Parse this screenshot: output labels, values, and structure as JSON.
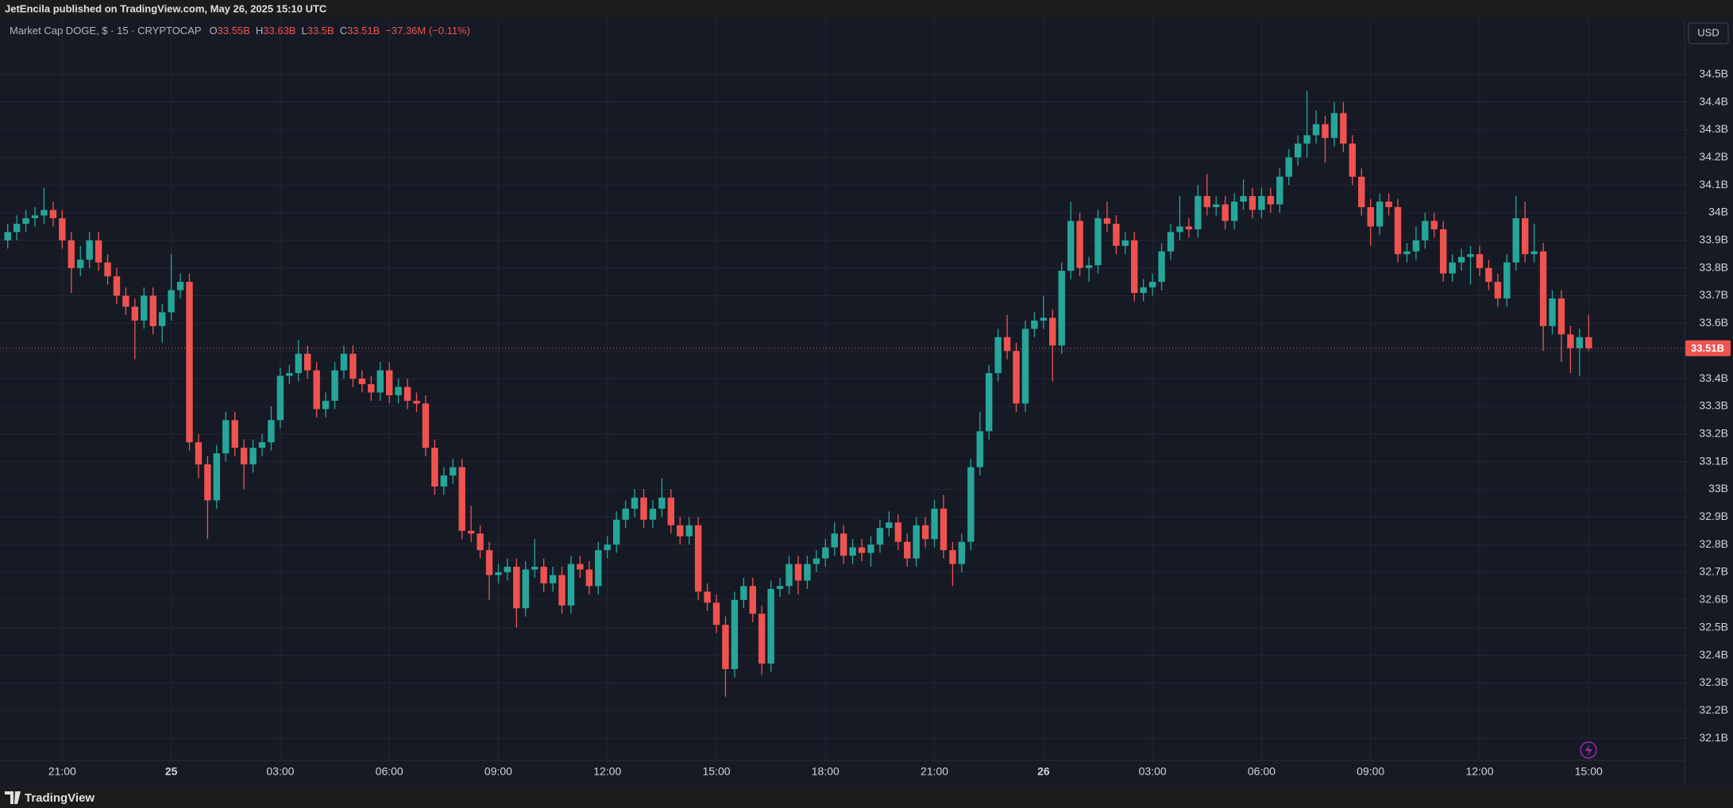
{
  "header": {
    "published": "JetEncila published on TradingView.com, May 26, 2025 15:10 UTC"
  },
  "footer": {
    "brand": "TradingView"
  },
  "currency_button": "USD",
  "chart_data": {
    "type": "candlestick",
    "title": "Market Cap DOGE, $ · 15 · CRYPTOCAP",
    "legend": [
      {
        "key": "O",
        "value": "33.55B"
      },
      {
        "key": "H",
        "value": "33.63B"
      },
      {
        "key": "L",
        "value": "33.5B"
      },
      {
        "key": "C",
        "value": "33.51B"
      }
    ],
    "change": "−37.36M (−0.11%)",
    "last_price_label": "33.51B",
    "up_color": "#26a69a",
    "down_color": "#ef5350",
    "grid": true,
    "ylim": [
      32.02,
      34.7
    ],
    "yticks": [
      {
        "value": 32.1,
        "label": "32.1B"
      },
      {
        "value": 32.2,
        "label": "32.2B"
      },
      {
        "value": 32.3,
        "label": "32.3B"
      },
      {
        "value": 32.4,
        "label": "32.4B"
      },
      {
        "value": 32.5,
        "label": "32.5B"
      },
      {
        "value": 32.6,
        "label": "32.6B"
      },
      {
        "value": 32.7,
        "label": "32.7B"
      },
      {
        "value": 32.8,
        "label": "32.8B"
      },
      {
        "value": 32.9,
        "label": "32.9B"
      },
      {
        "value": 33,
        "label": "33B"
      },
      {
        "value": 33.1,
        "label": "33.1B"
      },
      {
        "value": 33.2,
        "label": "33.2B"
      },
      {
        "value": 33.3,
        "label": "33.3B"
      },
      {
        "value": 33.4,
        "label": "33.4B"
      },
      {
        "value": 33.5,
        "label": "33.5B"
      },
      {
        "value": 33.6,
        "label": "33.6B"
      },
      {
        "value": 33.7,
        "label": "33.7B"
      },
      {
        "value": 33.8,
        "label": "33.8B"
      },
      {
        "value": 33.9,
        "label": "33.9B"
      },
      {
        "value": 34,
        "label": "34B"
      },
      {
        "value": 34.1,
        "label": "34.1B"
      },
      {
        "value": 34.2,
        "label": "34.2B"
      },
      {
        "value": 34.3,
        "label": "34.3B"
      },
      {
        "value": 34.4,
        "label": "34.4B"
      },
      {
        "value": 34.5,
        "label": "34.5B"
      }
    ],
    "categories": [
      null,
      null,
      null,
      null,
      null,
      null,
      "21:00",
      null,
      null,
      null,
      null,
      null,
      null,
      null,
      null,
      null,
      null,
      null,
      "25",
      null,
      null,
      null,
      null,
      null,
      null,
      null,
      null,
      null,
      null,
      null,
      "03:00",
      null,
      null,
      null,
      null,
      null,
      null,
      null,
      null,
      null,
      null,
      null,
      "06:00",
      null,
      null,
      null,
      null,
      null,
      null,
      null,
      null,
      null,
      null,
      null,
      "09:00",
      null,
      null,
      null,
      null,
      null,
      null,
      null,
      null,
      null,
      null,
      null,
      "12:00",
      null,
      null,
      null,
      null,
      null,
      null,
      null,
      null,
      null,
      null,
      null,
      "15:00",
      null,
      null,
      null,
      null,
      null,
      null,
      null,
      null,
      null,
      null,
      null,
      "18:00",
      null,
      null,
      null,
      null,
      null,
      null,
      null,
      null,
      null,
      null,
      null,
      "21:00",
      null,
      null,
      null,
      null,
      null,
      null,
      null,
      null,
      null,
      null,
      null,
      "26",
      null,
      null,
      null,
      null,
      null,
      null,
      null,
      null,
      null,
      null,
      null,
      "03:00",
      null,
      null,
      null,
      null,
      null,
      null,
      null,
      null,
      null,
      null,
      null,
      "06:00",
      null,
      null,
      null,
      null,
      null,
      null,
      null,
      null,
      null,
      null,
      null,
      "09:00",
      null,
      null,
      null,
      null,
      null,
      null,
      null,
      null,
      null,
      null,
      null,
      "12:00",
      null,
      null,
      null,
      null,
      null,
      null,
      null,
      null,
      null,
      null,
      null,
      "15:00"
    ],
    "ohlc": [
      [
        33.9,
        33.96,
        33.87,
        33.93
      ],
      [
        33.93,
        33.99,
        33.9,
        33.96
      ],
      [
        33.96,
        34.01,
        33.93,
        33.98
      ],
      [
        33.98,
        34.02,
        33.95,
        33.99
      ],
      [
        33.99,
        34.09,
        33.96,
        34.01
      ],
      [
        34.01,
        34.04,
        33.95,
        33.98
      ],
      [
        33.98,
        34.01,
        33.87,
        33.9
      ],
      [
        33.9,
        33.93,
        33.71,
        33.8
      ],
      [
        33.8,
        33.88,
        33.77,
        33.83
      ],
      [
        33.83,
        33.93,
        33.8,
        33.9
      ],
      [
        33.9,
        33.93,
        33.79,
        33.82
      ],
      [
        33.82,
        33.85,
        33.74,
        33.77
      ],
      [
        33.77,
        33.8,
        33.67,
        33.7
      ],
      [
        33.7,
        33.73,
        33.63,
        33.66
      ],
      [
        33.66,
        33.69,
        33.47,
        33.61
      ],
      [
        33.61,
        33.73,
        33.58,
        33.7
      ],
      [
        33.7,
        33.73,
        33.56,
        33.59
      ],
      [
        33.59,
        33.67,
        33.53,
        33.64
      ],
      [
        33.64,
        33.85,
        33.61,
        33.72
      ],
      [
        33.72,
        33.78,
        33.69,
        33.75
      ],
      [
        33.75,
        33.78,
        33.14,
        33.17
      ],
      [
        33.17,
        33.2,
        33.04,
        33.09
      ],
      [
        33.09,
        33.12,
        32.82,
        32.96
      ],
      [
        32.96,
        33.16,
        32.93,
        33.13
      ],
      [
        33.13,
        33.28,
        33.1,
        33.25
      ],
      [
        33.25,
        33.28,
        33.12,
        33.15
      ],
      [
        33.15,
        33.18,
        33.0,
        33.09
      ],
      [
        33.09,
        33.18,
        33.06,
        33.15
      ],
      [
        33.15,
        33.2,
        33.12,
        33.17
      ],
      [
        33.17,
        33.3,
        33.14,
        33.25
      ],
      [
        33.25,
        33.44,
        33.22,
        33.41
      ],
      [
        33.41,
        33.45,
        33.38,
        33.42
      ],
      [
        33.42,
        33.54,
        33.39,
        33.49
      ],
      [
        33.49,
        33.52,
        33.4,
        33.43
      ],
      [
        33.43,
        33.46,
        33.26,
        33.29
      ],
      [
        33.29,
        33.35,
        33.26,
        33.32
      ],
      [
        33.32,
        33.46,
        33.29,
        33.43
      ],
      [
        33.43,
        33.52,
        33.4,
        33.49
      ],
      [
        33.49,
        33.52,
        33.37,
        33.4
      ],
      [
        33.4,
        33.43,
        33.35,
        33.38
      ],
      [
        33.38,
        33.41,
        33.32,
        33.35
      ],
      [
        33.35,
        33.46,
        33.32,
        33.43
      ],
      [
        33.43,
        33.46,
        33.31,
        33.34
      ],
      [
        33.34,
        33.4,
        33.31,
        33.37
      ],
      [
        33.37,
        33.4,
        33.29,
        33.32
      ],
      [
        33.32,
        33.35,
        33.28,
        33.31
      ],
      [
        33.31,
        33.34,
        33.12,
        33.15
      ],
      [
        33.15,
        33.18,
        32.98,
        33.01
      ],
      [
        33.01,
        33.08,
        32.98,
        33.05
      ],
      [
        33.05,
        33.11,
        33.02,
        33.08
      ],
      [
        33.08,
        33.11,
        32.82,
        32.85
      ],
      [
        32.85,
        32.94,
        32.81,
        32.84
      ],
      [
        32.84,
        32.87,
        32.75,
        32.78
      ],
      [
        32.78,
        32.81,
        32.6,
        32.69
      ],
      [
        32.69,
        32.73,
        32.66,
        32.7
      ],
      [
        32.7,
        32.75,
        32.67,
        32.72
      ],
      [
        32.72,
        32.75,
        32.5,
        32.57
      ],
      [
        32.57,
        32.74,
        32.54,
        32.71
      ],
      [
        32.71,
        32.82,
        32.68,
        32.72
      ],
      [
        32.72,
        32.75,
        32.63,
        32.66
      ],
      [
        32.66,
        32.72,
        32.63,
        32.69
      ],
      [
        32.69,
        32.72,
        32.55,
        32.58
      ],
      [
        32.58,
        32.76,
        32.55,
        32.73
      ],
      [
        32.73,
        32.76,
        32.68,
        32.71
      ],
      [
        32.71,
        32.74,
        32.62,
        32.65
      ],
      [
        32.65,
        32.81,
        32.62,
        32.78
      ],
      [
        32.78,
        32.83,
        32.75,
        32.8
      ],
      [
        32.8,
        32.92,
        32.77,
        32.89
      ],
      [
        32.89,
        32.96,
        32.86,
        32.93
      ],
      [
        32.93,
        33.0,
        32.9,
        32.97
      ],
      [
        32.97,
        33.0,
        32.86,
        32.89
      ],
      [
        32.89,
        32.96,
        32.86,
        32.93
      ],
      [
        32.93,
        33.04,
        32.9,
        32.97
      ],
      [
        32.97,
        33.0,
        32.84,
        32.87
      ],
      [
        32.87,
        32.9,
        32.8,
        32.83
      ],
      [
        32.83,
        32.9,
        32.8,
        32.87
      ],
      [
        32.87,
        32.9,
        32.6,
        32.63
      ],
      [
        32.63,
        32.66,
        32.56,
        32.59
      ],
      [
        32.59,
        32.62,
        32.48,
        32.51
      ],
      [
        32.51,
        32.54,
        32.25,
        32.35
      ],
      [
        32.35,
        32.63,
        32.32,
        32.6
      ],
      [
        32.6,
        32.68,
        32.57,
        32.65
      ],
      [
        32.65,
        32.68,
        32.52,
        32.55
      ],
      [
        32.55,
        32.58,
        32.33,
        32.37
      ],
      [
        32.37,
        32.67,
        32.34,
        32.64
      ],
      [
        32.64,
        32.68,
        32.61,
        32.65
      ],
      [
        32.65,
        32.76,
        32.62,
        32.73
      ],
      [
        32.73,
        32.76,
        32.62,
        32.67
      ],
      [
        32.67,
        32.76,
        32.64,
        32.73
      ],
      [
        32.73,
        32.78,
        32.7,
        32.75
      ],
      [
        32.75,
        32.82,
        32.72,
        32.79
      ],
      [
        32.79,
        32.88,
        32.76,
        32.84
      ],
      [
        32.84,
        32.87,
        32.73,
        32.76
      ],
      [
        32.76,
        32.82,
        32.73,
        32.79
      ],
      [
        32.79,
        32.82,
        32.74,
        32.77
      ],
      [
        32.77,
        32.83,
        32.72,
        32.8
      ],
      [
        32.8,
        32.89,
        32.77,
        32.86
      ],
      [
        32.86,
        32.92,
        32.83,
        32.88
      ],
      [
        32.88,
        32.91,
        32.78,
        32.81
      ],
      [
        32.81,
        32.84,
        32.72,
        32.75
      ],
      [
        32.75,
        32.9,
        32.72,
        32.87
      ],
      [
        32.87,
        32.9,
        32.79,
        32.82
      ],
      [
        32.82,
        32.96,
        32.79,
        32.93
      ],
      [
        32.93,
        32.98,
        32.75,
        32.78
      ],
      [
        32.78,
        32.81,
        32.65,
        32.73
      ],
      [
        32.73,
        32.84,
        32.7,
        32.81
      ],
      [
        32.81,
        33.11,
        32.78,
        33.08
      ],
      [
        33.08,
        33.28,
        33.05,
        33.21
      ],
      [
        33.21,
        33.45,
        33.18,
        33.42
      ],
      [
        33.42,
        33.58,
        33.39,
        33.55
      ],
      [
        33.55,
        33.63,
        33.47,
        33.5
      ],
      [
        33.5,
        33.53,
        33.28,
        33.31
      ],
      [
        33.31,
        33.61,
        33.28,
        33.58
      ],
      [
        33.58,
        33.64,
        33.55,
        33.61
      ],
      [
        33.61,
        33.7,
        33.58,
        33.62
      ],
      [
        33.62,
        33.65,
        33.39,
        33.52
      ],
      [
        33.52,
        33.82,
        33.49,
        33.79
      ],
      [
        33.79,
        34.04,
        33.76,
        33.97
      ],
      [
        33.97,
        34.0,
        33.77,
        33.8
      ],
      [
        33.8,
        33.84,
        33.75,
        33.81
      ],
      [
        33.81,
        34.01,
        33.78,
        33.98
      ],
      [
        33.98,
        34.04,
        33.93,
        33.96
      ],
      [
        33.96,
        33.99,
        33.85,
        33.88
      ],
      [
        33.88,
        33.93,
        33.85,
        33.9
      ],
      [
        33.9,
        33.93,
        33.68,
        33.71
      ],
      [
        33.71,
        33.76,
        33.68,
        33.73
      ],
      [
        33.73,
        33.78,
        33.7,
        33.75
      ],
      [
        33.75,
        33.89,
        33.72,
        33.86
      ],
      [
        33.86,
        33.96,
        33.83,
        33.93
      ],
      [
        33.93,
        34.06,
        33.9,
        33.95
      ],
      [
        33.95,
        33.98,
        33.91,
        33.94
      ],
      [
        33.94,
        34.1,
        33.91,
        34.06
      ],
      [
        34.06,
        34.14,
        33.99,
        34.02
      ],
      [
        34.02,
        34.06,
        33.99,
        34.03
      ],
      [
        34.03,
        34.06,
        33.94,
        33.97
      ],
      [
        33.97,
        34.07,
        33.94,
        34.04
      ],
      [
        34.04,
        34.12,
        34.01,
        34.06
      ],
      [
        34.06,
        34.09,
        33.98,
        34.01
      ],
      [
        34.01,
        34.09,
        33.98,
        34.06
      ],
      [
        34.06,
        34.09,
        34.0,
        34.03
      ],
      [
        34.03,
        34.16,
        34.0,
        34.13
      ],
      [
        34.13,
        34.23,
        34.1,
        34.2
      ],
      [
        34.2,
        34.28,
        34.17,
        34.25
      ],
      [
        34.25,
        34.44,
        34.2,
        34.28
      ],
      [
        34.28,
        34.37,
        34.25,
        34.32
      ],
      [
        34.32,
        34.35,
        34.18,
        34.27
      ],
      [
        34.27,
        34.4,
        34.24,
        34.36
      ],
      [
        34.36,
        34.4,
        34.22,
        34.25
      ],
      [
        34.25,
        34.28,
        34.1,
        34.13
      ],
      [
        34.13,
        34.16,
        33.99,
        34.02
      ],
      [
        34.02,
        34.05,
        33.88,
        33.95
      ],
      [
        33.95,
        34.07,
        33.92,
        34.04
      ],
      [
        34.04,
        34.07,
        33.99,
        34.02
      ],
      [
        34.02,
        34.05,
        33.82,
        33.85
      ],
      [
        33.85,
        33.89,
        33.82,
        33.86
      ],
      [
        33.86,
        33.95,
        33.83,
        33.9
      ],
      [
        33.9,
        34.0,
        33.87,
        33.97
      ],
      [
        33.97,
        34.0,
        33.91,
        33.94
      ],
      [
        33.94,
        33.97,
        33.75,
        33.78
      ],
      [
        33.78,
        33.85,
        33.75,
        33.82
      ],
      [
        33.82,
        33.87,
        33.79,
        33.84
      ],
      [
        33.84,
        33.88,
        33.74,
        33.85
      ],
      [
        33.85,
        33.88,
        33.77,
        33.8
      ],
      [
        33.8,
        33.83,
        33.72,
        33.75
      ],
      [
        33.75,
        33.78,
        33.66,
        33.69
      ],
      [
        33.69,
        33.85,
        33.66,
        33.82
      ],
      [
        33.82,
        34.06,
        33.79,
        33.98
      ],
      [
        33.98,
        34.04,
        33.82,
        33.85
      ],
      [
        33.85,
        33.96,
        33.82,
        33.86
      ],
      [
        33.86,
        33.89,
        33.5,
        33.59
      ],
      [
        33.59,
        33.72,
        33.56,
        33.69
      ],
      [
        33.69,
        33.72,
        33.46,
        33.56
      ],
      [
        33.56,
        33.59,
        33.42,
        33.51
      ],
      [
        33.51,
        33.58,
        33.41,
        33.55
      ],
      [
        33.55,
        33.63,
        33.5,
        33.51
      ]
    ]
  }
}
